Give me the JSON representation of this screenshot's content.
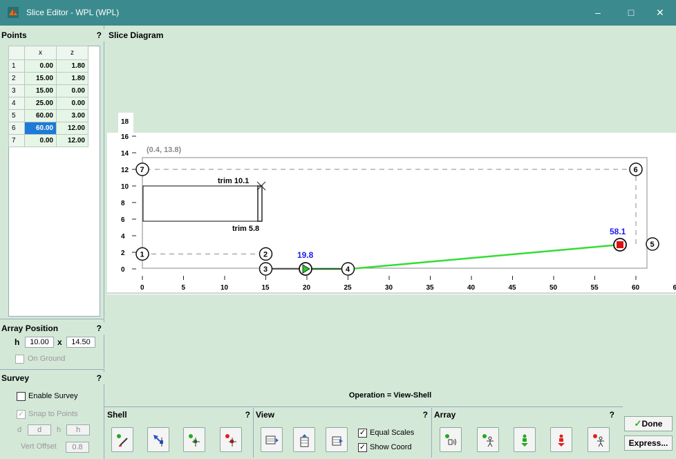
{
  "window": {
    "title": "Slice Editor - WPL (WPL)",
    "minimize": "–",
    "maximize": "□",
    "close": "✕"
  },
  "points": {
    "title": "Points",
    "help": "?",
    "columns": [
      "x",
      "z"
    ],
    "rows": [
      {
        "n": "1",
        "x": "0.00",
        "z": "1.80"
      },
      {
        "n": "2",
        "x": "15.00",
        "z": "1.80"
      },
      {
        "n": "3",
        "x": "15.00",
        "z": "0.00"
      },
      {
        "n": "4",
        "x": "25.00",
        "z": "0.00"
      },
      {
        "n": "5",
        "x": "60.00",
        "z": "3.00"
      },
      {
        "n": "6",
        "x": "60.00",
        "z": "12.00"
      },
      {
        "n": "7",
        "x": "0.00",
        "z": "12.00"
      }
    ],
    "selected_row": 6
  },
  "array_position": {
    "title": "Array Position",
    "help": "?",
    "h_label": "h",
    "h_value": "10.00",
    "x_label": "x",
    "x_value": "14.50",
    "on_ground": "On Ground"
  },
  "survey": {
    "title": "Survey",
    "help": "?",
    "enable": "Enable Survey",
    "snap": "Snap to Points",
    "d_label": "d",
    "d_value": "d",
    "h_label": "h",
    "h_value": "h",
    "vert_offset_label": "Vert Offset",
    "vert_offset_value": "0.8"
  },
  "diagram": {
    "title": "Slice Diagram",
    "coord_label": "(0.4, 13.8)",
    "x_ticks": [
      "0",
      "5",
      "10",
      "15",
      "20",
      "25",
      "30",
      "35",
      "40",
      "45",
      "50",
      "55",
      "60",
      "6"
    ],
    "y_ticks": [
      "18",
      "16",
      "14",
      "12",
      "10",
      "8",
      "6",
      "4",
      "2",
      "0"
    ],
    "point_labels": [
      "1",
      "2",
      "3",
      "4",
      "5",
      "6",
      "7"
    ],
    "trim_top": "trim 10.1",
    "trim_bottom": "trim 5.8",
    "start_value": "19.8",
    "end_value": "58.1",
    "colors": {
      "line": "#33dd33",
      "start": "#22cc22",
      "end": "#dd1111",
      "value": "#1a1aee"
    }
  },
  "operation": "Operation = View-Shell",
  "toolbar": {
    "shell_title": "Shell",
    "shell_help": "?",
    "view_title": "View",
    "view_help": "?",
    "array_title": "Array",
    "array_help": "?",
    "equal_scales": "Equal Scales",
    "show_coord": "Show Coord",
    "shell_buttons": [
      "edit-shell-icon",
      "select-point-icon",
      "add-point-icon",
      "remove-point-icon"
    ],
    "view_buttons": [
      "zoom-fit-icon",
      "fit-height-icon",
      "fit-table-icon"
    ],
    "array_buttons": [
      "add-speaker-icon",
      "add-listener-icon",
      "move-down-icon",
      "move-person-icon",
      "remove-listener-icon"
    ]
  },
  "buttons": {
    "done": "Done",
    "express": "Express..."
  }
}
